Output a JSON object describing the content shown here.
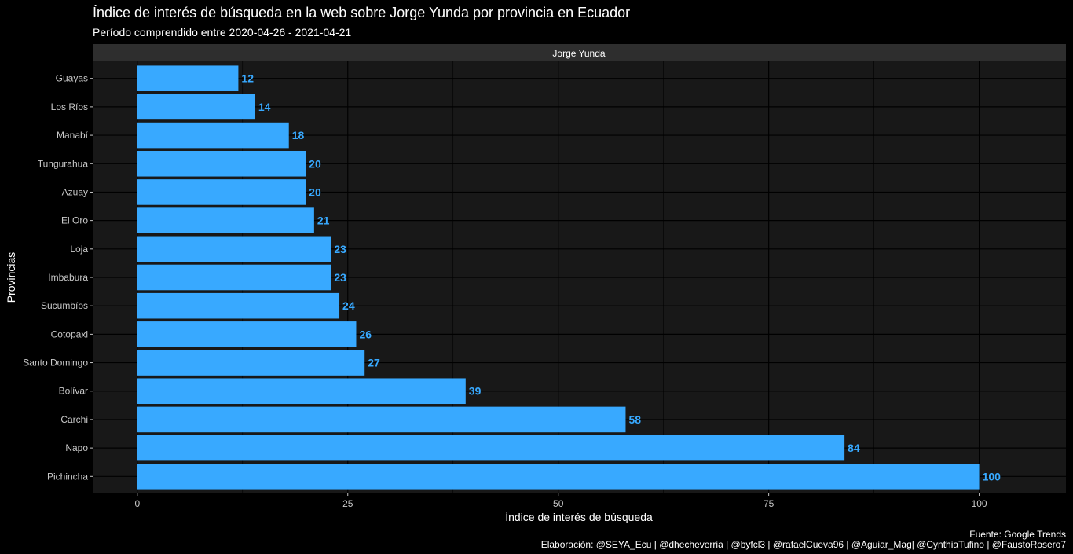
{
  "chart_data": {
    "type": "bar",
    "orientation": "horizontal",
    "title": "Índice de interés de búsqueda en la web sobre Jorge Yunda por provincia en Ecuador",
    "subtitle": "Período comprendido entre 2020-04-26 -  2021-04-21",
    "facet": "Jorge Yunda",
    "xlabel": "Índice de interés de búsqueda",
    "ylabel": "Provincias",
    "categories": [
      "Guayas",
      "Los Ríos",
      "Manabí",
      "Tungurahua",
      "Azuay",
      "El Oro",
      "Loja",
      "Imbabura",
      "Sucumbíos",
      "Cotopaxi",
      "Santo Domingo",
      "Bolívar",
      "Carchi",
      "Napo",
      "Pichincha"
    ],
    "values": [
      12,
      14,
      18,
      20,
      20,
      21,
      23,
      23,
      24,
      26,
      27,
      39,
      58,
      84,
      100
    ],
    "xlim": [
      -5.3,
      110.3
    ],
    "xticks": [
      0,
      25,
      50,
      75,
      100
    ],
    "grid": true,
    "bar_color": "#38a9ff",
    "label_color": "#38a9ff",
    "panel_color": "#181818",
    "strip_color": "#2e2e2e",
    "caption_source": "Fuente: Google Trends",
    "caption_credits": "Elaboración:  @SEYA_Ecu | @dhecheverria | @byfcl3 | @rafaelCueva96 | @Aguiar_Mag| @CynthiaTufino | @FaustoRosero7"
  }
}
